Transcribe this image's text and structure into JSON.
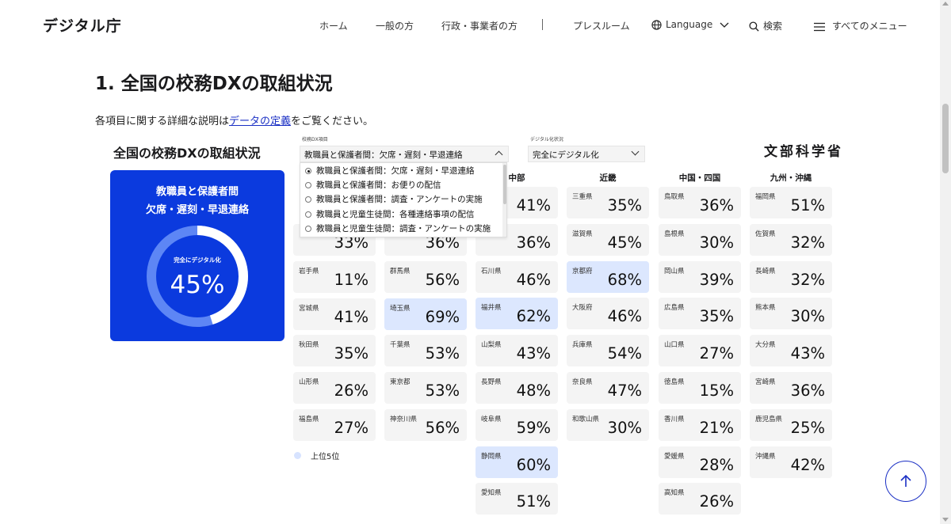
{
  "header": {
    "logo": "デジタル庁",
    "nav": {
      "home": "ホーム",
      "general": "一般の方",
      "gov": "行政・事業者の方",
      "press": "プレスルーム",
      "language": "Language",
      "search": "検索",
      "menu": "すべてのメニュー"
    }
  },
  "section": {
    "title": "1. 全国の校務DXの取組状況",
    "desc_before": "各項目に関する詳細な説明は",
    "desc_link": "データの定義",
    "desc_after": "をご覧ください。"
  },
  "viz": {
    "title": "全国の校務DXの取組状況",
    "logo": "文部科学省",
    "filter_item": {
      "label": "校務DX項目",
      "value": "教職員と保護者間：欠席・遅刻・早退連絡",
      "options": [
        "教職員と保護者間：欠席・遅刻・早退連絡",
        "教職員と保護者間：お便りの配信",
        "教職員と保護者間：調査・アンケートの実施",
        "教職員と児童生徒間：各種連絡事項の配信",
        "教職員と児童生徒間：調査・アンケートの実施"
      ]
    },
    "filter_status": {
      "label": "デジタル化状況",
      "value": "完全にデジタル化"
    },
    "summary": {
      "title1": "教職員と保護者間",
      "title2": "欠席・遅刻・早退連絡",
      "label": "完全にデジタル化",
      "value": "45%",
      "fraction": 0.45
    },
    "regions": {
      "chubu": "中部",
      "kinki": "近畿",
      "chugoku_shikoku": "中国・四国",
      "kyushu_okinawa": "九州・沖縄"
    },
    "legend": "上位5位",
    "colors": {
      "primary": "#0b3ade",
      "top5": "#dce7fe",
      "tile": "#f4f4f4"
    },
    "tiles": {
      "c1": [
        {
          "pref": "",
          "val": "33%",
          "top": false
        },
        {
          "pref": "岩手県",
          "val": "11%",
          "top": false
        },
        {
          "pref": "宮城県",
          "val": "41%",
          "top": false
        },
        {
          "pref": "秋田県",
          "val": "35%",
          "top": false
        },
        {
          "pref": "山形県",
          "val": "26%",
          "top": false
        },
        {
          "pref": "福島県",
          "val": "27%",
          "top": false
        }
      ],
      "c2": [
        {
          "pref": "",
          "val": "36%",
          "top": false
        },
        {
          "pref": "群馬県",
          "val": "56%",
          "top": false
        },
        {
          "pref": "埼玉県",
          "val": "69%",
          "top": true
        },
        {
          "pref": "千葉県",
          "val": "53%",
          "top": false
        },
        {
          "pref": "東京都",
          "val": "53%",
          "top": false
        },
        {
          "pref": "神奈川県",
          "val": "56%",
          "top": false
        }
      ],
      "c3": [
        {
          "pref": "",
          "val": "41%",
          "top": false
        },
        {
          "pref": "",
          "val": "36%",
          "top": false
        },
        {
          "pref": "石川県",
          "val": "46%",
          "top": false
        },
        {
          "pref": "福井県",
          "val": "62%",
          "top": true
        },
        {
          "pref": "山梨県",
          "val": "43%",
          "top": false
        },
        {
          "pref": "長野県",
          "val": "48%",
          "top": false
        },
        {
          "pref": "岐阜県",
          "val": "59%",
          "top": false
        },
        {
          "pref": "静岡県",
          "val": "60%",
          "top": true
        },
        {
          "pref": "愛知県",
          "val": "51%",
          "top": false
        }
      ],
      "c4": [
        {
          "pref": "三重県",
          "val": "35%",
          "top": false
        },
        {
          "pref": "滋賀県",
          "val": "45%",
          "top": false
        },
        {
          "pref": "京都府",
          "val": "68%",
          "top": true
        },
        {
          "pref": "大阪府",
          "val": "46%",
          "top": false
        },
        {
          "pref": "兵庫県",
          "val": "54%",
          "top": false
        },
        {
          "pref": "奈良県",
          "val": "47%",
          "top": false
        },
        {
          "pref": "和歌山県",
          "val": "30%",
          "top": false
        }
      ],
      "c5": [
        {
          "pref": "鳥取県",
          "val": "36%",
          "top": false
        },
        {
          "pref": "島根県",
          "val": "30%",
          "top": false
        },
        {
          "pref": "岡山県",
          "val": "39%",
          "top": false
        },
        {
          "pref": "広島県",
          "val": "35%",
          "top": false
        },
        {
          "pref": "山口県",
          "val": "27%",
          "top": false
        },
        {
          "pref": "徳島県",
          "val": "15%",
          "top": false
        },
        {
          "pref": "香川県",
          "val": "21%",
          "top": false
        },
        {
          "pref": "愛媛県",
          "val": "28%",
          "top": false
        },
        {
          "pref": "高知県",
          "val": "26%",
          "top": false
        }
      ],
      "c6": [
        {
          "pref": "福岡県",
          "val": "51%",
          "top": false
        },
        {
          "pref": "佐賀県",
          "val": "32%",
          "top": false
        },
        {
          "pref": "長崎県",
          "val": "32%",
          "top": false
        },
        {
          "pref": "熊本県",
          "val": "30%",
          "top": false
        },
        {
          "pref": "大分県",
          "val": "43%",
          "top": false
        },
        {
          "pref": "宮崎県",
          "val": "36%",
          "top": false
        },
        {
          "pref": "鹿児島県",
          "val": "25%",
          "top": false
        },
        {
          "pref": "沖縄県",
          "val": "42%",
          "top": false
        }
      ]
    }
  }
}
